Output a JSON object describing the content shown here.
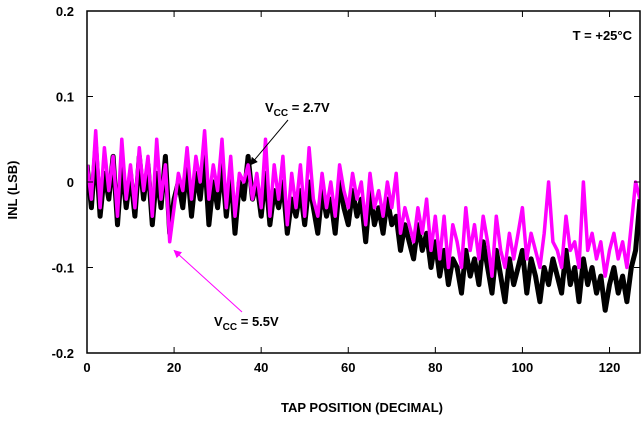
{
  "chart_data": {
    "type": "line",
    "xlabel": "TAP POSITION (DECIMAL)",
    "ylabel": "INL (LSB)",
    "xlim": [
      0,
      127
    ],
    "ylim": [
      -0.2,
      0.2
    ],
    "x_ticks": [
      0,
      20,
      40,
      60,
      80,
      100,
      120
    ],
    "y_ticks": [
      {
        "value": 0.2,
        "label": "0.2"
      },
      {
        "value": 0.1,
        "label": "0.1"
      },
      {
        "value": 0,
        "label": "0"
      },
      {
        "value": -0.1,
        "label": "-0.1"
      },
      {
        "value": -0.2,
        "label": "-0.2"
      }
    ],
    "grid": false,
    "annotations": {
      "temperature": "T = +25°C",
      "vcc_low": {
        "prefix": "V",
        "sub": "CC",
        "suffix": " = 2.7V",
        "target": {
          "x": 37.5,
          "y": 0.02
        }
      },
      "vcc_high": {
        "prefix": "V",
        "sub": "CC",
        "suffix": " = 5.5V",
        "target": {
          "x": 20,
          "y": -0.08
        }
      }
    },
    "series": [
      {
        "name": "VCC = 2.7V",
        "color": "#000000",
        "x_start": 0,
        "x_step": 1,
        "values": [
          0.02,
          -0.03,
          0.04,
          -0.04,
          0.01,
          -0.02,
          0.03,
          -0.05,
          0.02,
          -0.03,
          0.01,
          -0.04,
          0.03,
          -0.02,
          0.02,
          -0.05,
          0.01,
          -0.03,
          0.03,
          -0.06,
          -0.02,
          0.0,
          -0.03,
          0.02,
          -0.04,
          0.01,
          -0.02,
          0.03,
          -0.05,
          0.0,
          -0.03,
          0.02,
          -0.04,
          0.01,
          -0.06,
          0.0,
          -0.02,
          0.03,
          -0.02,
          0.0,
          -0.04,
          0.01,
          -0.05,
          -0.01,
          -0.03,
          0.0,
          -0.06,
          -0.02,
          -0.04,
          -0.01,
          -0.05,
          0.0,
          -0.03,
          -0.06,
          -0.01,
          -0.04,
          -0.02,
          -0.06,
          0.0,
          -0.03,
          -0.05,
          -0.01,
          -0.04,
          -0.02,
          -0.07,
          -0.01,
          -0.05,
          -0.03,
          -0.06,
          -0.02,
          -0.05,
          -0.04,
          -0.08,
          -0.05,
          -0.07,
          -0.09,
          -0.05,
          -0.08,
          -0.06,
          -0.1,
          -0.07,
          -0.11,
          -0.08,
          -0.12,
          -0.09,
          -0.1,
          -0.13,
          -0.08,
          -0.11,
          -0.09,
          -0.12,
          -0.07,
          -0.1,
          -0.13,
          -0.08,
          -0.11,
          -0.14,
          -0.09,
          -0.12,
          -0.1,
          -0.08,
          -0.13,
          -0.09,
          -0.11,
          -0.14,
          -0.1,
          -0.12,
          -0.09,
          -0.11,
          -0.13,
          -0.08,
          -0.12,
          -0.1,
          -0.14,
          -0.09,
          -0.12,
          -0.1,
          -0.13,
          -0.11,
          -0.15,
          -0.12,
          -0.1,
          -0.13,
          -0.11,
          -0.14,
          -0.1,
          -0.08,
          -0.02
        ]
      },
      {
        "name": "VCC = 5.5V",
        "color": "#ff00ff",
        "x_start": 0,
        "x_step": 1,
        "values": [
          0.02,
          -0.02,
          0.06,
          -0.03,
          0.04,
          -0.01,
          0.03,
          -0.04,
          0.05,
          -0.02,
          0.02,
          -0.03,
          0.04,
          -0.01,
          0.03,
          -0.04,
          0.05,
          -0.02,
          0.02,
          -0.07,
          -0.03,
          0.01,
          -0.01,
          0.04,
          -0.02,
          0.03,
          0.0,
          0.06,
          -0.02,
          0.02,
          -0.01,
          0.05,
          -0.03,
          0.03,
          -0.04,
          0.01,
          0.0,
          0.02,
          -0.02,
          0.01,
          -0.03,
          0.05,
          -0.04,
          0.02,
          -0.02,
          0.03,
          -0.05,
          0.01,
          -0.03,
          0.02,
          -0.04,
          0.04,
          -0.02,
          -0.04,
          0.01,
          -0.03,
          0.0,
          -0.04,
          0.02,
          -0.01,
          -0.03,
          0.01,
          -0.02,
          0.0,
          -0.05,
          0.01,
          -0.03,
          -0.01,
          -0.04,
          0.0,
          -0.03,
          0.01,
          -0.06,
          -0.03,
          -0.05,
          -0.07,
          -0.03,
          -0.06,
          -0.02,
          -0.08,
          -0.04,
          -0.09,
          -0.04,
          -0.1,
          -0.05,
          -0.07,
          -0.1,
          -0.03,
          -0.08,
          -0.05,
          -0.09,
          -0.04,
          -0.07,
          -0.11,
          -0.04,
          -0.08,
          -0.1,
          -0.06,
          -0.09,
          -0.06,
          -0.03,
          -0.09,
          -0.06,
          -0.08,
          -0.1,
          -0.06,
          0.0,
          -0.07,
          -0.08,
          -0.1,
          -0.04,
          -0.08,
          -0.07,
          -0.1,
          0.0,
          -0.08,
          -0.06,
          -0.09,
          -0.07,
          -0.11,
          -0.08,
          -0.06,
          -0.09,
          -0.07,
          -0.1,
          -0.05,
          0.0,
          -0.02
        ]
      }
    ]
  }
}
